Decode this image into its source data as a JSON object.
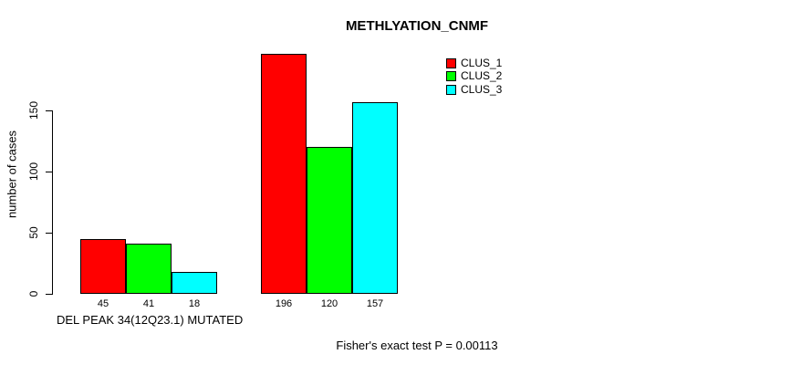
{
  "colors": {
    "background": "#ffffff",
    "text": "#000000",
    "axis": "#000000"
  },
  "chart_data": {
    "type": "bar",
    "title": "METHLYATION_CNMF",
    "ylabel": "number of cases",
    "xlabel": "DEL PEAK 34(12Q23.1) MUTATED",
    "annotation": "Fisher's exact test P = 0.00113",
    "yticks": [
      0,
      50,
      100,
      150
    ],
    "ylim": [
      0,
      205
    ],
    "grid": false,
    "legend_position": "top-right",
    "bar_value_labels_shown": true,
    "series": [
      {
        "name": "CLUS_1",
        "color": "#ff0000",
        "values": [
          45,
          196
        ]
      },
      {
        "name": "CLUS_2",
        "color": "#00ff00",
        "values": [
          41,
          120
        ]
      },
      {
        "name": "CLUS_3",
        "color": "#00ffff",
        "values": [
          18,
          157
        ]
      }
    ]
  }
}
